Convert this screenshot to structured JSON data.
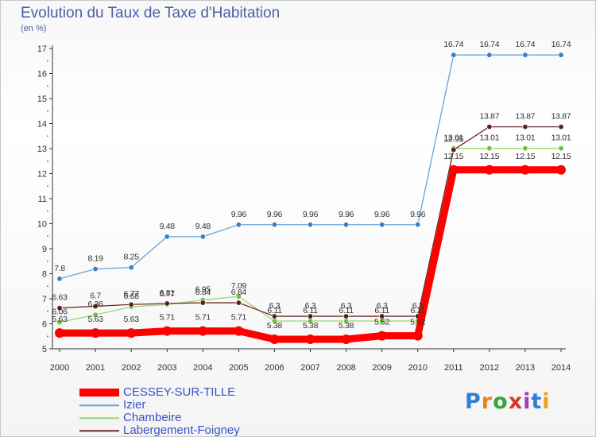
{
  "title": "Evolution du Taux de Taxe d'Habitation",
  "subtitle": "(en %)",
  "brand": "Proxiti",
  "brand_colors": [
    "#2f7fd2",
    "#e8821e",
    "#3aa33a",
    "#d8352a",
    "#9b3fc1",
    "#2f7fd2",
    "#e8a31e"
  ],
  "chart_data": {
    "type": "line",
    "title": "Evolution du Taux de Taxe d'Habitation",
    "ylabel": "(en %)",
    "xlabel": "",
    "x": [
      2000,
      2001,
      2002,
      2003,
      2004,
      2005,
      2006,
      2007,
      2008,
      2009,
      2010,
      2011,
      2012,
      2013,
      2014
    ],
    "ylim": [
      5,
      17
    ],
    "yticks": [
      5,
      6,
      7,
      8,
      9,
      10,
      11,
      12,
      13,
      14,
      15,
      16,
      17
    ],
    "grid": false,
    "legend_position": "bottom-left",
    "series": [
      {
        "name": "CESSEY-SUR-TILLE",
        "color": "#ff0000",
        "values": [
          5.63,
          5.63,
          5.63,
          5.71,
          5.71,
          5.71,
          5.38,
          5.38,
          5.38,
          5.52,
          5.52,
          12.15,
          12.15,
          12.15,
          12.15
        ],
        "labels": [
          "5.63",
          "5.63",
          "5.63",
          "5.71",
          "5.71",
          "5.71",
          "5.38",
          "5.38",
          "5.38",
          "5.52",
          "5.52",
          "12.15",
          "12.15",
          "12.15",
          "12.15"
        ]
      },
      {
        "name": "Izier",
        "color": "#5b9bd5",
        "values": [
          7.8,
          8.19,
          8.25,
          9.48,
          9.48,
          9.96,
          9.96,
          9.96,
          9.96,
          9.96,
          9.96,
          16.74,
          16.74,
          16.74,
          16.74
        ],
        "labels": [
          "7.8",
          "8.19",
          "8.25",
          "9.48",
          "9.48",
          "9.96",
          "9.96",
          "9.96",
          "9.96",
          "9.96",
          "9.96",
          "16.74",
          "16.74",
          "16.74",
          "16.74"
        ]
      },
      {
        "name": "Chambeire",
        "color": "#8fd14f",
        "values": [
          6.06,
          6.36,
          6.68,
          6.77,
          6.95,
          7.09,
          6.11,
          6.11,
          6.11,
          6.11,
          6.11,
          13.01,
          13.01,
          13.01,
          13.01
        ],
        "labels": [
          "6.06",
          "6.36",
          "6.68",
          "6.77",
          "6.95",
          "7.09",
          "6.11",
          "6.11",
          "6.11",
          "6.11",
          "6.11",
          "13.01",
          "13.01",
          "13.01",
          "13.01"
        ]
      },
      {
        "name": "Labergement-Foigney",
        "color": "#6e2a2a",
        "values": [
          6.63,
          6.7,
          6.77,
          6.81,
          6.84,
          6.84,
          6.3,
          6.3,
          6.3,
          6.3,
          6.3,
          12.95,
          13.87,
          13.87,
          13.87
        ],
        "labels": [
          "6.63",
          "6.7",
          "6.77",
          "6.81",
          "6.84",
          "6.84",
          "6.3",
          "6.3",
          "6.3",
          "6.3",
          "6.3",
          "12.95",
          "13.87",
          "13.87",
          "13.87"
        ]
      }
    ]
  }
}
